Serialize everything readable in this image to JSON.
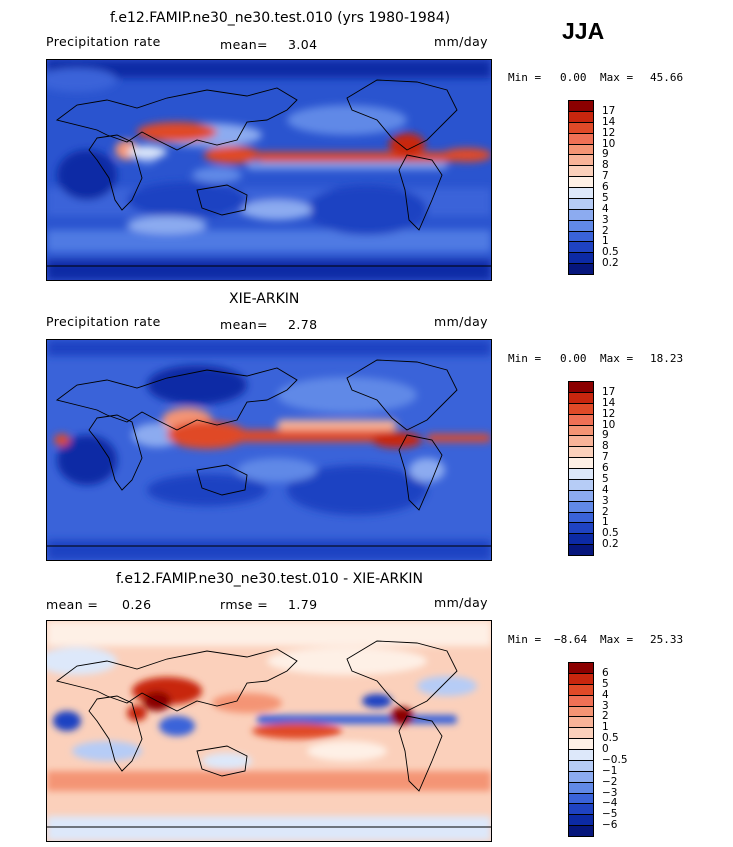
{
  "season": "JJA",
  "units": "mm/day",
  "panels": [
    {
      "title": "f.e12.FAMIP.ne30_ne30.test.010 (yrs 1980-1984)",
      "var_label": "Precipitation rate",
      "stat_label": "mean=",
      "stat_value": "3.04",
      "units": "mm/day",
      "min_label": "Min =",
      "min_value": "0.00",
      "max_label": "Max =",
      "max_value": "45.66",
      "colorbar_labels": [
        "17",
        "14",
        "12",
        "10",
        "9",
        "8",
        "7",
        "6",
        "5",
        "4",
        "3",
        "2",
        "1",
        "0.5",
        "0.2"
      ],
      "colorbar_colors": [
        "#8b0000",
        "#c8260e",
        "#e04a28",
        "#ef7055",
        "#f49474",
        "#f8b398",
        "#fbd0bb",
        "#fef0e6",
        "#dde8fa",
        "#b6ccf6",
        "#8cabf0",
        "#6189e7",
        "#3a63d9",
        "#1f43c2",
        "#0c2aa5",
        "#06167c"
      ]
    },
    {
      "title": "XIE-ARKIN",
      "var_label": "Precipitation rate",
      "stat_label": "mean=",
      "stat_value": "2.78",
      "units": "mm/day",
      "min_label": "Min =",
      "min_value": "0.00",
      "max_label": "Max =",
      "max_value": "18.23",
      "colorbar_labels": [
        "17",
        "14",
        "12",
        "10",
        "9",
        "8",
        "7",
        "6",
        "5",
        "4",
        "3",
        "2",
        "1",
        "0.5",
        "0.2"
      ],
      "colorbar_colors": [
        "#8b0000",
        "#c8260e",
        "#e04a28",
        "#ef7055",
        "#f49474",
        "#f8b398",
        "#fbd0bb",
        "#fef0e6",
        "#dde8fa",
        "#b6ccf6",
        "#8cabf0",
        "#6189e7",
        "#3a63d9",
        "#1f43c2",
        "#0c2aa5",
        "#06167c"
      ]
    },
    {
      "title": "f.e12.FAMIP.ne30_ne30.test.010 - XIE-ARKIN",
      "stat_label": "mean =",
      "stat_value": "0.26",
      "rmse_label": "rmse =",
      "rmse_value": "1.79",
      "units": "mm/day",
      "min_label": "Min =",
      "min_value": "−8.64",
      "max_label": "Max =",
      "max_value": "25.33",
      "colorbar_labels": [
        "6",
        "5",
        "4",
        "3",
        "2",
        "1",
        "0.5",
        "0",
        "−0.5",
        "−1",
        "−2",
        "−3",
        "−4",
        "−5",
        "−6"
      ],
      "colorbar_colors": [
        "#8b0000",
        "#c8260e",
        "#e04a28",
        "#ef7055",
        "#f49474",
        "#f8b398",
        "#fbd0bb",
        "#fef0e6",
        "#dde8fa",
        "#b6ccf6",
        "#8cabf0",
        "#6189e7",
        "#3a63d9",
        "#1f43c2",
        "#0c2aa5",
        "#06167c"
      ]
    }
  ]
}
